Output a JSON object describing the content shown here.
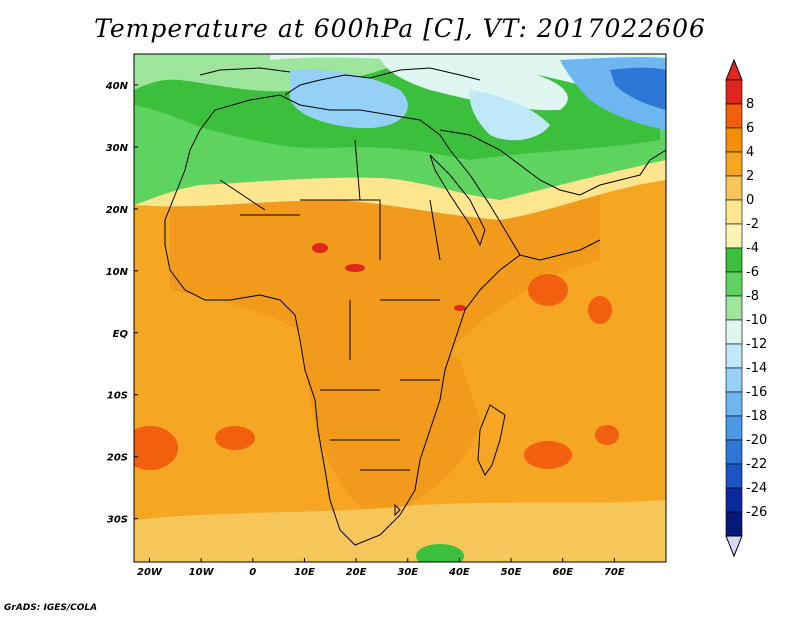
{
  "title": "Temperature at 600hPa [C], VT: 2017022606",
  "credit": "GrADS: IGES/COLA",
  "map": {
    "region": "Africa, Middle East and Western Indian Ocean",
    "lon_range": [
      -23,
      80
    ],
    "lat_range": [
      -37,
      45
    ],
    "lon_ticks": [
      "20W",
      "10W",
      "0",
      "10E",
      "20E",
      "30E",
      "40E",
      "50E",
      "60E",
      "70E"
    ],
    "lat_ticks": [
      "40N",
      "30N",
      "20N",
      "10N",
      "EQ",
      "10S",
      "20S",
      "30S"
    ]
  },
  "colorbar": {
    "labels": [
      "8",
      "6",
      "4",
      "2",
      "0",
      "-2",
      "-4",
      "-6",
      "-8",
      "-10",
      "-12",
      "-14",
      "-16",
      "-18",
      "-20",
      "-22",
      "-24",
      "-26"
    ],
    "colors": [
      "#e0271b",
      "#f2600f",
      "#f58e08",
      "#f5a623",
      "#f6c65a",
      "#fde68e",
      "#fbf4b4",
      "#3cbf3c",
      "#5fd35f",
      "#9ee59e",
      "#dff7f0",
      "#bfe8f8",
      "#95d0f6",
      "#6eb6f0",
      "#4a9ae6",
      "#2d78d6",
      "#1a55c2",
      "#0c2a9e",
      "#08187a"
    ],
    "end_colors": {
      "top": "#e0271b",
      "bottom": "#d6d6f5"
    }
  }
}
